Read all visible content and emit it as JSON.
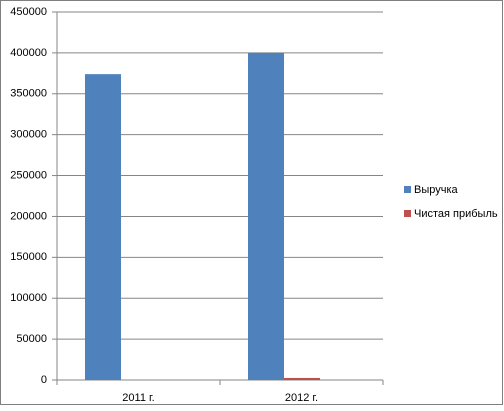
{
  "chart_data": {
    "type": "bar",
    "categories": [
      "2011 г.",
      "2012 г."
    ],
    "series": [
      {
        "name": "Выручка",
        "color": "#4f81bd",
        "values": [
          374000,
          400000
        ]
      },
      {
        "name": "Чистая прибыль",
        "color": "#c0504d",
        "values": [
          0,
          2500
        ]
      }
    ],
    "ylim": [
      0,
      450000
    ],
    "yticks": [
      0,
      50000,
      100000,
      150000,
      200000,
      250000,
      300000,
      350000,
      400000,
      450000
    ],
    "grid": true,
    "legend": "right"
  }
}
